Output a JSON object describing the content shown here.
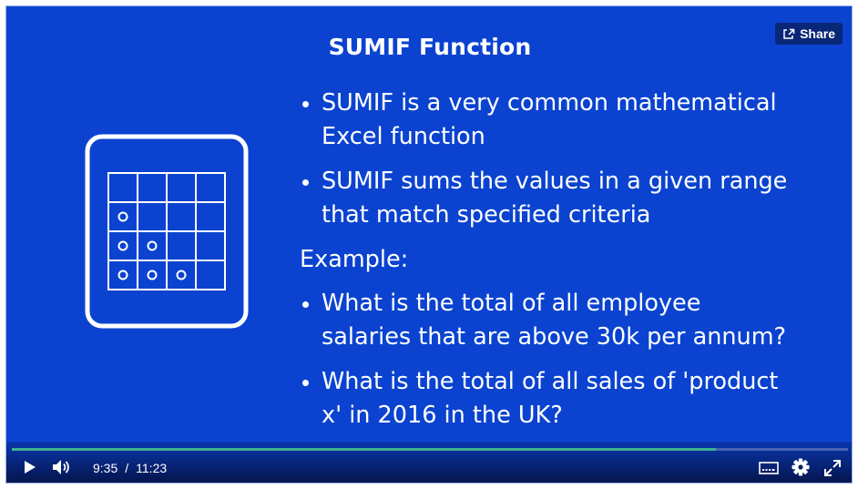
{
  "share": {
    "label": "Share"
  },
  "slide": {
    "title": "SUMIF Function",
    "bullets": [
      {
        "line1": "SUMIF is a very common mathematical",
        "line2": "Excel function"
      },
      {
        "line1": "SUMIF sums the values in a given range",
        "line2": "that match specified criteria"
      }
    ],
    "example_label": "Example:",
    "example_bullets": [
      {
        "line1": "What is the total of all employee",
        "line2": "salaries that are above 30k per annum?"
      },
      {
        "line1": "What is the total of all sales of 'product",
        "line2": "x' in 2016 in the UK?"
      }
    ]
  },
  "player": {
    "current_time": "9:35",
    "separator": "/",
    "duration": "11:23",
    "progress_fraction": 0.842
  },
  "icons": {
    "share": "share-icon",
    "grid": "spreadsheet-grid-icon",
    "play": "play-icon",
    "volume": "volume-icon",
    "captions": "captions-icon",
    "settings": "gear-icon",
    "fullscreen": "fullscreen-icon"
  },
  "colors": {
    "slide_background": "#0b43d0",
    "progress": "#3fb28c",
    "text": "#ffffff"
  }
}
